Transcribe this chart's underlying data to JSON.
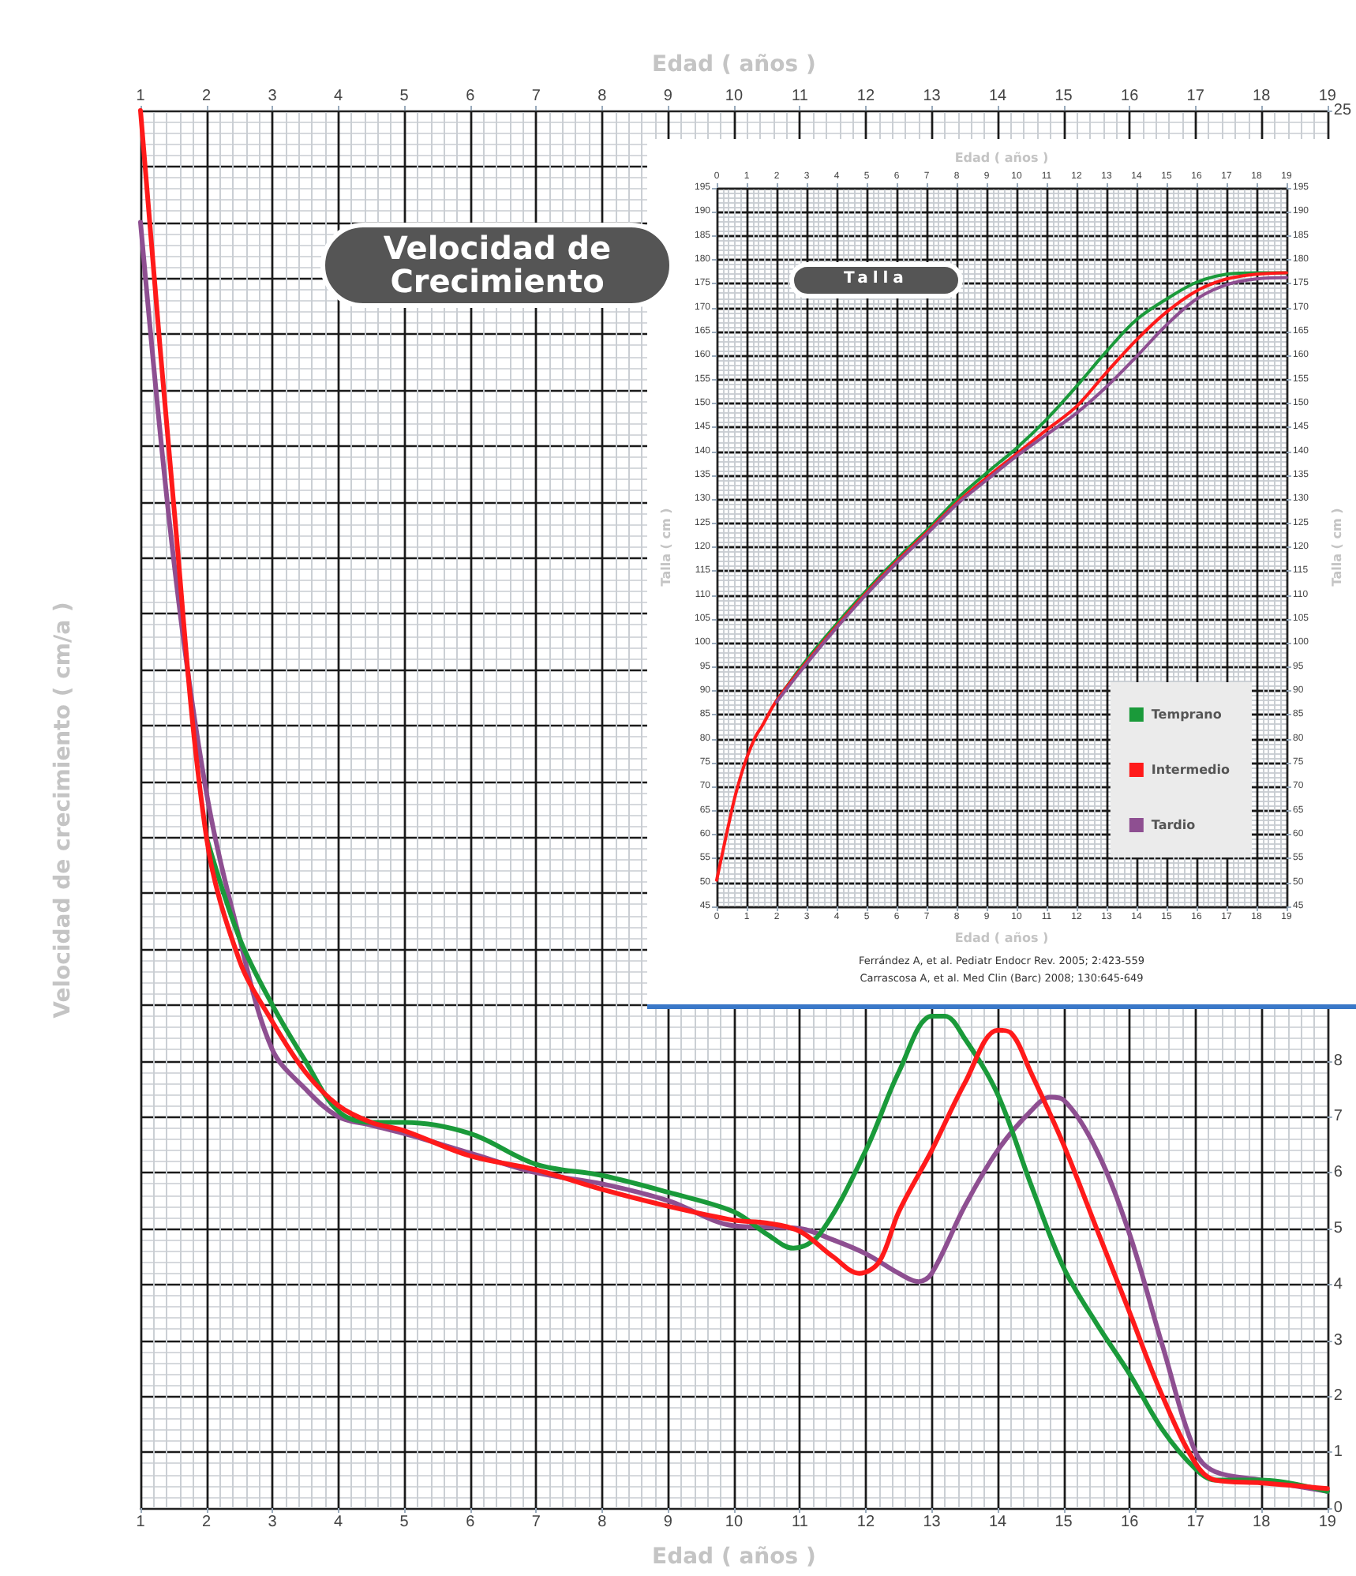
{
  "chart_data": [
    {
      "type": "line",
      "title": "Velocidad de Crecimiento",
      "xlabel": "Edad ( años )",
      "x2label": "Edad ( años )",
      "ylabel": "Velocidad de crecimiento ( cm/a )",
      "xlim": [
        1,
        19
      ],
      "xticks": [
        1,
        2,
        3,
        4,
        5,
        6,
        7,
        8,
        9,
        10,
        11,
        12,
        13,
        14,
        15,
        16,
        17,
        18,
        19
      ],
      "x2lim": [
        1,
        19
      ],
      "x2ticks": [
        1,
        2,
        3,
        4,
        5,
        6,
        7,
        8,
        9,
        10,
        11,
        12,
        13,
        14,
        15,
        16,
        17,
        18,
        19
      ],
      "ylim": [
        0,
        25
      ],
      "yticks": [
        0,
        1,
        2,
        3,
        4,
        5,
        6,
        7,
        8,
        {
          "value": 9,
          "label": null
        },
        {
          "value": 10,
          "label": null
        },
        {
          "value": 11,
          "label": null
        },
        {
          "value": 12,
          "label": null
        },
        {
          "value": 13,
          "label": null
        },
        {
          "value": 14,
          "label": null
        },
        {
          "value": 15,
          "label": null
        },
        {
          "value": 16,
          "label": null
        },
        {
          "value": 17,
          "label": null
        },
        {
          "value": 18,
          "label": null
        },
        {
          "value": 19,
          "label": null
        },
        {
          "value": 20,
          "label": null
        },
        {
          "value": 21,
          "label": null
        },
        {
          "value": 22,
          "label": null
        },
        {
          "value": 23,
          "label": null
        },
        {
          "value": 24,
          "label": null
        },
        25
      ],
      "grid": true,
      "series": [
        {
          "color": "#8e4f91",
          "x": [
            1,
            1.5,
            2,
            2.5,
            3,
            3.5,
            4,
            4.5,
            5,
            6,
            7,
            8,
            9,
            10,
            11,
            11.5,
            12,
            12.5,
            12.8,
            13,
            13.5,
            14,
            14.5,
            14.8,
            15,
            15.5,
            16,
            16.5,
            17,
            17.3,
            18,
            19
          ],
          "values": [
            23,
            17,
            12.8,
            10.2,
            8.2,
            7.5,
            7,
            6.85,
            6.7,
            6.35,
            6,
            5.8,
            5.5,
            5.05,
            5,
            4.8,
            4.55,
            4.2,
            4.05,
            4.2,
            5.4,
            6.4,
            7.1,
            7.35,
            7.3,
            6.4,
            4.9,
            2.9,
            1,
            0.65,
            0.5,
            0.3
          ]
        },
        {
          "color": "#1a9a3a",
          "x": [
            2,
            2.5,
            3,
            3.5,
            4,
            4.5,
            5,
            6,
            7,
            8,
            9,
            10,
            10.5,
            10.9,
            11.3,
            12,
            12.5,
            13,
            13.2,
            13.5,
            14,
            14.5,
            15,
            15.5,
            16,
            16.5,
            17,
            17.3,
            18,
            19
          ],
          "values": [
            12,
            10.2,
            9,
            8,
            7.1,
            6.9,
            6.9,
            6.7,
            6.15,
            5.95,
            5.65,
            5.3,
            4.9,
            4.65,
            4.9,
            6.4,
            7.8,
            8.8,
            8.8,
            8.4,
            7.4,
            5.8,
            4.3,
            3.3,
            2.4,
            1.4,
            0.7,
            0.5,
            0.5,
            0.3
          ]
        },
        {
          "color": "#ff1a1a",
          "x": [
            1,
            1.5,
            2,
            2.5,
            3,
            3.5,
            4,
            4.5,
            5,
            6,
            7,
            8,
            9,
            10,
            10.5,
            11,
            11.5,
            11.9,
            12.2,
            12.5,
            13,
            13.5,
            14,
            14.2,
            14.5,
            15,
            15.5,
            16,
            16.5,
            17,
            17.3,
            18,
            19
          ],
          "values": [
            25,
            18,
            12,
            9.8,
            8.7,
            7.8,
            7.2,
            6.9,
            6.75,
            6.3,
            6.05,
            5.7,
            5.4,
            5.15,
            5.1,
            4.95,
            4.5,
            4.2,
            4.4,
            5.3,
            6.4,
            7.6,
            8.55,
            8.5,
            7.8,
            6.5,
            5,
            3.5,
            2,
            0.8,
            0.5,
            0.45,
            0.35
          ]
        }
      ]
    },
    {
      "type": "line",
      "title": "Talla",
      "xlabel": "Edad ( años )",
      "x2label": "Edad ( años )",
      "ylabel": "Talla ( cm )",
      "y2label": "Talla ( cm )",
      "xlim": [
        0,
        19
      ],
      "xticks": [
        0,
        1,
        2,
        3,
        4,
        5,
        6,
        7,
        8,
        9,
        10,
        11,
        12,
        13,
        14,
        15,
        16,
        17,
        18,
        19
      ],
      "x2lim": [
        0,
        19
      ],
      "x2ticks": [
        0,
        1,
        2,
        3,
        4,
        5,
        6,
        7,
        8,
        9,
        10,
        11,
        12,
        13,
        14,
        15,
        16,
        17,
        18,
        19
      ],
      "ylim": [
        45,
        195
      ],
      "yticks": [
        45,
        50,
        55,
        60,
        65,
        70,
        75,
        80,
        85,
        90,
        95,
        100,
        105,
        110,
        115,
        120,
        125,
        130,
        135,
        140,
        145,
        150,
        155,
        160,
        165,
        170,
        175,
        180,
        185,
        190,
        195
      ],
      "y2lim": [
        45,
        195
      ],
      "y2ticks": [
        45,
        50,
        55,
        60,
        65,
        70,
        75,
        80,
        85,
        90,
        95,
        100,
        105,
        110,
        115,
        120,
        125,
        130,
        135,
        140,
        145,
        150,
        155,
        160,
        165,
        170,
        175,
        180,
        185,
        190,
        195
      ],
      "grid": true,
      "legend": "bottom right",
      "annotations": [
        "Ferrández A, et al. Pediatr Endocr Rev. 2005; 2:423-559",
        "Carrascosa A, et al. Med Clin (Barc) 2008; 130:645-649"
      ],
      "series": [
        {
          "name": "Temprano",
          "color": "#1a9a3a",
          "x": [
            2,
            3,
            4,
            5,
            6,
            7,
            8,
            9,
            10,
            11,
            12,
            13,
            14,
            15,
            16,
            17,
            18,
            19
          ],
          "values": [
            88,
            96.5,
            104,
            111,
            117.5,
            123.5,
            130,
            135.5,
            140.7,
            146.7,
            153.6,
            160.9,
            167.5,
            171.8,
            175.3,
            177,
            177.3,
            177.3
          ]
        },
        {
          "name": "Intermedio",
          "color": "#ff1a1a",
          "x": [
            0,
            0.5,
            0.7,
            1,
            1.3,
            1.5,
            2,
            3,
            4,
            5,
            6,
            7,
            8,
            9,
            10,
            11,
            12,
            13,
            14,
            15,
            16,
            17,
            18,
            19
          ],
          "values": [
            50.5,
            65,
            70,
            76,
            80.5,
            82.5,
            88,
            96,
            103.5,
            110.5,
            117,
            123,
            129.2,
            134.5,
            139.5,
            144.5,
            149.4,
            156.5,
            163.3,
            169.1,
            173.5,
            176,
            177,
            177.3
          ]
        },
        {
          "name": "Tardio",
          "color": "#8e4f91",
          "x": [
            2,
            3,
            4,
            5,
            6,
            7,
            8,
            9,
            10,
            11,
            12,
            13,
            14,
            15,
            16,
            17,
            18,
            19
          ],
          "values": [
            87.7,
            95.7,
            103.2,
            110.2,
            116.7,
            122.7,
            128.9,
            134,
            139,
            143.5,
            148,
            153.5,
            159.8,
            166.4,
            171.8,
            174.8,
            176,
            176.3
          ]
        }
      ]
    }
  ]
}
